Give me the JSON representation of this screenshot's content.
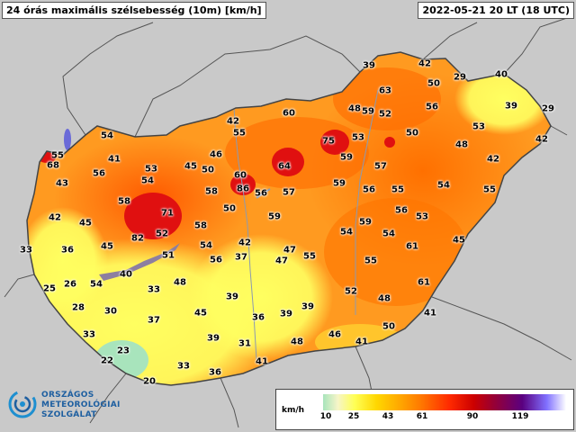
{
  "header": {
    "title": "24 órás maximális szélsebesség (10m) [km/h]",
    "timestamp": "2022-05-21 20 LT (18 UTC)"
  },
  "legend": {
    "unit": "km/h",
    "ticks": [
      "10",
      "25",
      "43",
      "61",
      "90",
      "119"
    ],
    "colors": {
      "green": "#a8e4bc",
      "yellow": "#ffff55",
      "orange": "#ffa500",
      "red": "#ff2a00",
      "darkred": "#cc0000",
      "purple": "#5a0080"
    }
  },
  "logo": {
    "line1": "ORSZÁGOS",
    "line2": "METEOROLÓGIAI",
    "line3": "SZOLGÁLAT"
  },
  "stations": [
    {
      "v": "39"
    },
    {
      "v": "42"
    },
    {
      "v": "40"
    },
    {
      "v": "63"
    },
    {
      "v": "50"
    },
    {
      "v": "29"
    },
    {
      "v": "39"
    },
    {
      "v": "29"
    },
    {
      "v": "56"
    },
    {
      "v": "53"
    },
    {
      "v": "48"
    },
    {
      "v": "59"
    },
    {
      "v": "52"
    },
    {
      "v": "60"
    },
    {
      "v": "42"
    },
    {
      "v": "55"
    },
    {
      "v": "54"
    },
    {
      "v": "75"
    },
    {
      "v": "53"
    },
    {
      "v": "50"
    },
    {
      "v": "48"
    },
    {
      "v": "42"
    },
    {
      "v": "55"
    },
    {
      "v": "68"
    },
    {
      "v": "41"
    },
    {
      "v": "53"
    },
    {
      "v": "45"
    },
    {
      "v": "50"
    },
    {
      "v": "46"
    },
    {
      "v": "64"
    },
    {
      "v": "59"
    },
    {
      "v": "57"
    },
    {
      "v": "42"
    },
    {
      "v": "43"
    },
    {
      "v": "56"
    },
    {
      "v": "60"
    },
    {
      "v": "86"
    },
    {
      "v": "56"
    },
    {
      "v": "57"
    },
    {
      "v": "59"
    },
    {
      "v": "56"
    },
    {
      "v": "55"
    },
    {
      "v": "54"
    },
    {
      "v": "55"
    },
    {
      "v": "58"
    },
    {
      "v": "54"
    },
    {
      "v": "58"
    },
    {
      "v": "71"
    },
    {
      "v": "50"
    },
    {
      "v": "59"
    },
    {
      "v": "59"
    },
    {
      "v": "56"
    },
    {
      "v": "53"
    },
    {
      "v": "42"
    },
    {
      "v": "45"
    },
    {
      "v": "58"
    },
    {
      "v": "52"
    },
    {
      "v": "54"
    },
    {
      "v": "82"
    },
    {
      "v": "54"
    },
    {
      "v": "42"
    },
    {
      "v": "47"
    },
    {
      "v": "54"
    },
    {
      "v": "61"
    },
    {
      "v": "45"
    },
    {
      "v": "33"
    },
    {
      "v": "36"
    },
    {
      "v": "45"
    },
    {
      "v": "51"
    },
    {
      "v": "56"
    },
    {
      "v": "37"
    },
    {
      "v": "47"
    },
    {
      "v": "55"
    },
    {
      "v": "55"
    },
    {
      "v": "40"
    },
    {
      "v": "48"
    },
    {
      "v": "61"
    },
    {
      "v": "25"
    },
    {
      "v": "26"
    },
    {
      "v": "54"
    },
    {
      "v": "33"
    },
    {
      "v": "39"
    },
    {
      "v": "52"
    },
    {
      "v": "48"
    },
    {
      "v": "28"
    },
    {
      "v": "30"
    },
    {
      "v": "45"
    },
    {
      "v": "36"
    },
    {
      "v": "39"
    },
    {
      "v": "39"
    },
    {
      "v": "41"
    },
    {
      "v": "37"
    },
    {
      "v": "50"
    },
    {
      "v": "33"
    },
    {
      "v": "39"
    },
    {
      "v": "48"
    },
    {
      "v": "46"
    },
    {
      "v": "31"
    },
    {
      "v": "41"
    },
    {
      "v": "23"
    },
    {
      "v": "22"
    },
    {
      "v": "33"
    },
    {
      "v": "41"
    },
    {
      "v": "36"
    },
    {
      "v": "20"
    }
  ]
}
